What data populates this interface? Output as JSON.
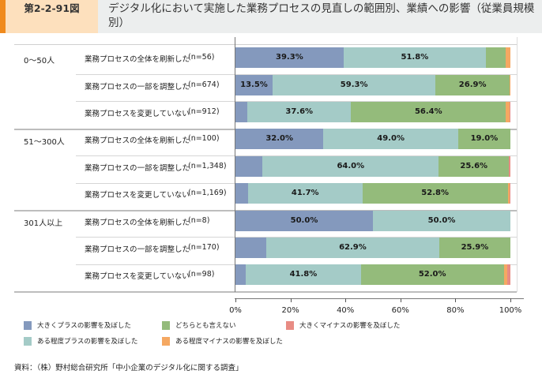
{
  "header": {
    "figure_number": "第2-2-91図",
    "title": "デジタル化において実施した業務プロセスの見直しの範囲別、業績への影響（従業員規模別）"
  },
  "colors": {
    "header_accent": "#f08a1c",
    "header_number_bg": "#fde0bd",
    "header_bg": "#eceeee"
  },
  "chart_data": {
    "type": "bar",
    "orientation": "horizontal",
    "stacked": "100%",
    "title": "デジタル化において実施した業務プロセスの見直しの範囲別、業績への影響（従業員規模別）",
    "xlim": [
      0,
      100
    ],
    "x_ticks": [
      "0%",
      "20%",
      "40%",
      "60%",
      "80%",
      "100%"
    ],
    "legend_position": "bottom-left",
    "groups": [
      {
        "name": "0～50人",
        "rows": [
          0,
          1,
          2
        ]
      },
      {
        "name": "51～300人",
        "rows": [
          3,
          4,
          5
        ]
      },
      {
        "name": "301人以上",
        "rows": [
          6,
          7,
          8
        ]
      }
    ],
    "categories": [
      {
        "label": "業務プロセスの全体を刷新した",
        "n": "(n=56)"
      },
      {
        "label": "業務プロセスの一部を調整した",
        "n": "(n=674)"
      },
      {
        "label": "業務プロセスを変更していない",
        "n": "(n=912)"
      },
      {
        "label": "業務プロセスの全体を刷新した",
        "n": "(n=100)"
      },
      {
        "label": "業務プロセスの一部を調整した",
        "n": "(n=1,348)"
      },
      {
        "label": "業務プロセスを変更していない",
        "n": "(n=1,169)"
      },
      {
        "label": "業務プロセスの全体を刷新した",
        "n": "(n=8)"
      },
      {
        "label": "業務プロセスの一部を調整した",
        "n": "(n=170)"
      },
      {
        "label": "業務プロセスを変更していない",
        "n": "(n=98)"
      }
    ],
    "series": [
      {
        "name": "大きくプラスの影響を及ぼした",
        "color": "#8499bd",
        "values": [
          39.3,
          13.5,
          4.4,
          32.0,
          9.9,
          4.5,
          50.0,
          11.2,
          3.8
        ],
        "labels": [
          "39.3%",
          "13.5%",
          "",
          "32.0%",
          "",
          "",
          "50.0%",
          "",
          ""
        ]
      },
      {
        "name": "ある程度プラスの影響を及ぼした",
        "color": "#a4cbc7",
        "values": [
          51.8,
          59.3,
          37.6,
          49.0,
          64.0,
          41.7,
          50.0,
          62.9,
          41.8
        ],
        "labels": [
          "51.8%",
          "59.3%",
          "37.6%",
          "49.0%",
          "64.0%",
          "41.7%",
          "50.0%",
          "62.9%",
          "41.8%"
        ]
      },
      {
        "name": "どちらとも言えない",
        "color": "#94bb7b",
        "values": [
          7.2,
          26.9,
          56.4,
          19.0,
          25.6,
          52.8,
          0,
          25.9,
          52.0
        ],
        "labels": [
          "",
          "26.9%",
          "56.4%",
          "19.0%",
          "25.6%",
          "52.8%",
          "",
          "25.9%",
          "52.0%"
        ]
      },
      {
        "name": "ある程度マイナスの影響を及ぼした",
        "color": "#f5a862",
        "values": [
          1.7,
          0.3,
          1.3,
          0,
          0,
          0.6,
          0,
          0,
          1.3
        ],
        "labels": [
          "",
          "",
          "",
          "",
          "",
          "",
          "",
          "",
          ""
        ]
      },
      {
        "name": "大きくマイナスの影響を及ぼした",
        "color": "#e88c84",
        "values": [
          0,
          0,
          0.3,
          0,
          0.5,
          0.4,
          0,
          0,
          1.1
        ],
        "labels": [
          "",
          "",
          "",
          "",
          "",
          "",
          "",
          "",
          ""
        ]
      }
    ],
    "legend_order": [
      0,
      2,
      4,
      1,
      3
    ]
  },
  "source": "資料：（株）野村総合研究所「中小企業のデジタル化に関する調査」"
}
